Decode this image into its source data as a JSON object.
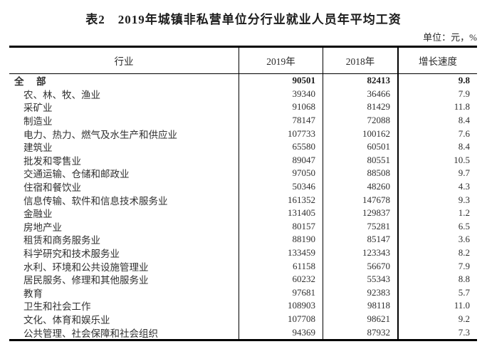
{
  "page": {
    "title": "表2　2019年城镇非私营单位分行业就业人员年平均工资",
    "unit_note": "单位：元，%"
  },
  "table": {
    "columns": [
      "行业",
      "2019年",
      "2018年",
      "增长速度"
    ],
    "rows": [
      {
        "industry": "全　部",
        "y2019": "90501",
        "y2018": "82413",
        "growth": "9.8",
        "bold": true
      },
      {
        "industry": "农、林、牧、渔业",
        "y2019": "39340",
        "y2018": "36466",
        "growth": "7.9",
        "bold": false
      },
      {
        "industry": "采矿业",
        "y2019": "91068",
        "y2018": "81429",
        "growth": "11.8",
        "bold": false
      },
      {
        "industry": "制造业",
        "y2019": "78147",
        "y2018": "72088",
        "growth": "8.4",
        "bold": false
      },
      {
        "industry": "电力、热力、燃气及水生产和供应业",
        "y2019": "107733",
        "y2018": "100162",
        "growth": "7.6",
        "bold": false
      },
      {
        "industry": "建筑业",
        "y2019": "65580",
        "y2018": "60501",
        "growth": "8.4",
        "bold": false
      },
      {
        "industry": "批发和零售业",
        "y2019": "89047",
        "y2018": "80551",
        "growth": "10.5",
        "bold": false
      },
      {
        "industry": "交通运输、仓储和邮政业",
        "y2019": "97050",
        "y2018": "88508",
        "growth": "9.7",
        "bold": false
      },
      {
        "industry": "住宿和餐饮业",
        "y2019": "50346",
        "y2018": "48260",
        "growth": "4.3",
        "bold": false
      },
      {
        "industry": "信息传输、软件和信息技术服务业",
        "y2019": "161352",
        "y2018": "147678",
        "growth": "9.3",
        "bold": false
      },
      {
        "industry": "金融业",
        "y2019": "131405",
        "y2018": "129837",
        "growth": "1.2",
        "bold": false
      },
      {
        "industry": "房地产业",
        "y2019": "80157",
        "y2018": "75281",
        "growth": "6.5",
        "bold": false
      },
      {
        "industry": "租赁和商务服务业",
        "y2019": "88190",
        "y2018": "85147",
        "growth": "3.6",
        "bold": false
      },
      {
        "industry": "科学研究和技术服务业",
        "y2019": "133459",
        "y2018": "123343",
        "growth": "8.2",
        "bold": false
      },
      {
        "industry": "水利、环境和公共设施管理业",
        "y2019": "61158",
        "y2018": "56670",
        "growth": "7.9",
        "bold": false
      },
      {
        "industry": "居民服务、修理和其他服务业",
        "y2019": "60232",
        "y2018": "55343",
        "growth": "8.8",
        "bold": false
      },
      {
        "industry": "教育",
        "y2019": "97681",
        "y2018": "92383",
        "growth": "5.7",
        "bold": false
      },
      {
        "industry": "卫生和社会工作",
        "y2019": "108903",
        "y2018": "98118",
        "growth": "11.0",
        "bold": false
      },
      {
        "industry": "文化、体育和娱乐业",
        "y2019": "107708",
        "y2018": "98621",
        "growth": "9.2",
        "bold": false
      },
      {
        "industry": "公共管理、社会保障和社会组织",
        "y2019": "94369",
        "y2018": "87932",
        "growth": "7.3",
        "bold": false
      }
    ]
  },
  "colors": {
    "text": "#303030",
    "title_text": "#1c1c1c",
    "border": "#000000",
    "background": "#ffffff"
  }
}
